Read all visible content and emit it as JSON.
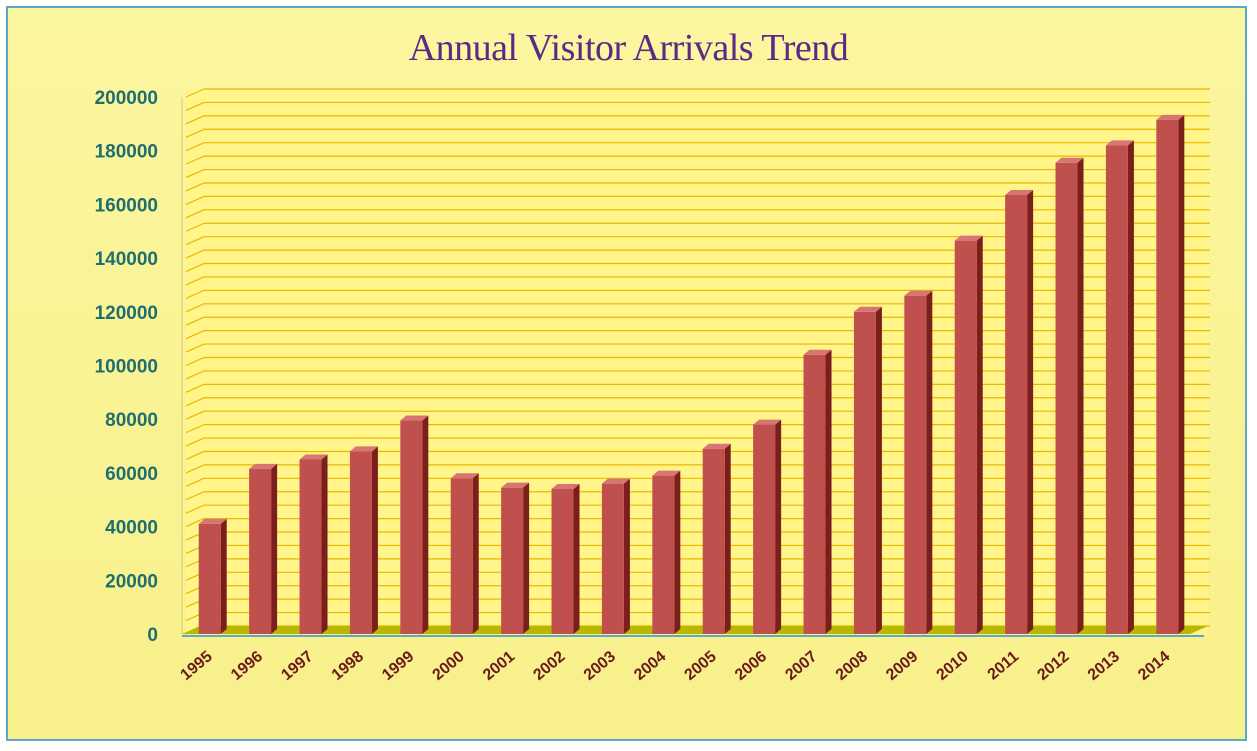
{
  "chart_data": {
    "type": "bar",
    "title": "Annual Visitor Arrivals Trend",
    "xlabel": "",
    "ylabel": "",
    "categories": [
      "1995",
      "1996",
      "1997",
      "1998",
      "1999",
      "2000",
      "2001",
      "2002",
      "2003",
      "2004",
      "2005",
      "2006",
      "2007",
      "2008",
      "2009",
      "2010",
      "2011",
      "2012",
      "2013",
      "2014"
    ],
    "values": [
      41000,
      61500,
      65000,
      68000,
      79500,
      58000,
      54500,
      54000,
      56000,
      59000,
      69000,
      78000,
      104000,
      120000,
      126000,
      146500,
      163500,
      175500,
      182000,
      191500
    ],
    "ylim": [
      0,
      200000
    ],
    "yticks": [
      "0",
      "20000",
      "40000",
      "60000",
      "80000",
      "100000",
      "120000",
      "140000",
      "160000",
      "180000",
      "200000"
    ],
    "grid": true,
    "colors": {
      "bar_front": "#c0504d",
      "bar_side": "#7a1f1c",
      "bar_top": "#d67572",
      "plot_bg": "#fff58a",
      "gridline": "#e9b800",
      "floor": "#b8b800"
    }
  }
}
